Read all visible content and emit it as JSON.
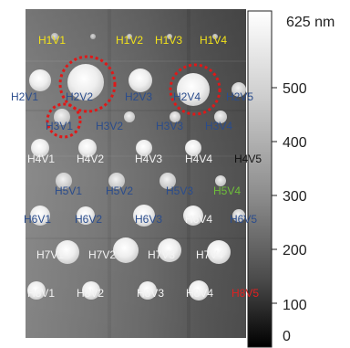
{
  "image": {
    "description_free": true,
    "colorbar": {
      "max_label": "625 nm",
      "ticks": [
        "500",
        "400",
        "300",
        "200",
        "100",
        "0"
      ]
    },
    "labels": [
      {
        "text": "H1V1",
        "color": "#f2e21a"
      },
      {
        "text": "H1V2",
        "color": "#f2e21a"
      },
      {
        "text": "H1V3",
        "color": "#f2e21a"
      },
      {
        "text": "H1V4",
        "color": "#f2e21a"
      },
      {
        "text": "H2V1",
        "color": "#2a4c8c"
      },
      {
        "text": "H2V2",
        "color": "#2a4c8c"
      },
      {
        "text": "H2V3",
        "color": "#2a4c8c"
      },
      {
        "text": "H2V4",
        "color": "#2a4c8c"
      },
      {
        "text": "H2V5",
        "color": "#2a4c8c"
      },
      {
        "text": "H3V1",
        "color": "#2a4c8c"
      },
      {
        "text": "H3V2",
        "color": "#2a4c8c"
      },
      {
        "text": "H3V3",
        "color": "#2a4c8c"
      },
      {
        "text": "H3V4",
        "color": "#2a4c8c"
      },
      {
        "text": "H4V1",
        "color": "#f4f4f4"
      },
      {
        "text": "H4V2",
        "color": "#f4f4f4"
      },
      {
        "text": "H4V3",
        "color": "#f4f4f4"
      },
      {
        "text": "H4V4",
        "color": "#f4f4f4"
      },
      {
        "text": "H4V5",
        "color": "#111111"
      },
      {
        "text": "H5V1",
        "color": "#2a4c8c"
      },
      {
        "text": "H5V2",
        "color": "#2a4c8c"
      },
      {
        "text": "H5V3",
        "color": "#2a4c8c"
      },
      {
        "text": "H5V4",
        "color": "#6fbf3a"
      },
      {
        "text": "H6V1",
        "color": "#2a4c8c"
      },
      {
        "text": "H6V2",
        "color": "#2a4c8c"
      },
      {
        "text": "H6V3",
        "color": "#2a4c8c"
      },
      {
        "text": "H6V4",
        "color": "#f4f4f4"
      },
      {
        "text": "H6V5",
        "color": "#2a4c8c"
      },
      {
        "text": "H7V1",
        "color": "#f4f4f4"
      },
      {
        "text": "H7V2",
        "color": "#f4f4f4"
      },
      {
        "text": "H7V3",
        "color": "#f4f4f4"
      },
      {
        "text": "H7V4",
        "color": "#f4f4f4"
      },
      {
        "text": "H8V1",
        "color": "#f4f4f4"
      },
      {
        "text": "H8V2",
        "color": "#f4f4f4"
      },
      {
        "text": "H8V3",
        "color": "#f4f4f4"
      },
      {
        "text": "H8V4",
        "color": "#f4f4f4"
      },
      {
        "text": "H8V5",
        "color": "#e32020"
      }
    ],
    "highlight_color": "#e01818"
  }
}
